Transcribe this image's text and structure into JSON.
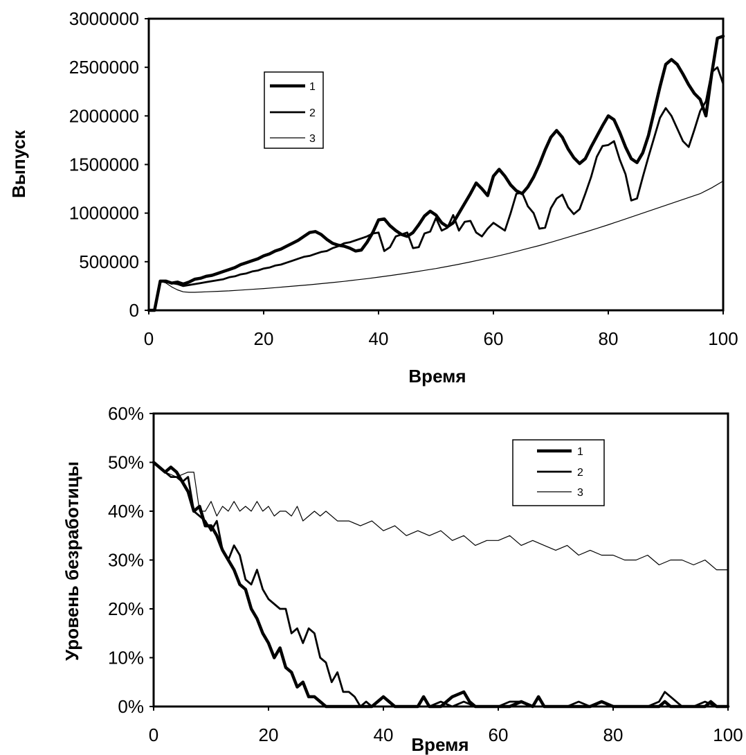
{
  "chart_data": [
    {
      "type": "line",
      "title": "",
      "xlabel": "Время",
      "ylabel": "Выпуск",
      "xlim": [
        0,
        100
      ],
      "ylim": [
        0,
        3000000
      ],
      "xticks": [
        0,
        20,
        40,
        60,
        80,
        100
      ],
      "xtick_labels": [
        "0",
        "20",
        "40",
        "60",
        "80",
        "100"
      ],
      "yticks": [
        0,
        500000,
        1000000,
        1500000,
        2000000,
        2500000,
        3000000
      ],
      "ytick_labels": [
        "0",
        "500000",
        "1000000",
        "1500000",
        "2000000",
        "2500000",
        "3000000"
      ],
      "grid": false,
      "legend_position": "upper-left",
      "series": [
        {
          "name": "1",
          "line_width": 4.5,
          "x": [
            0,
            1,
            2,
            3,
            4,
            5,
            6,
            7,
            8,
            9,
            10,
            11,
            12,
            13,
            14,
            15,
            16,
            17,
            18,
            19,
            20,
            21,
            22,
            23,
            24,
            25,
            26,
            27,
            28,
            29,
            30,
            31,
            32,
            33,
            34,
            35,
            36,
            37,
            38,
            39,
            40,
            41,
            42,
            43,
            44,
            45,
            46,
            47,
            48,
            49,
            50,
            51,
            52,
            53,
            54,
            55,
            56,
            57,
            58,
            59,
            60,
            61,
            62,
            63,
            64,
            65,
            66,
            67,
            68,
            69,
            70,
            71,
            72,
            73,
            74,
            75,
            76,
            77,
            78,
            79,
            80,
            81,
            82,
            83,
            84,
            85,
            86,
            87,
            88,
            89,
            90,
            91,
            92,
            93,
            94,
            95,
            96,
            97,
            98,
            99,
            100
          ],
          "y": [
            0,
            0,
            300000,
            300000,
            280000,
            290000,
            270000,
            290000,
            320000,
            330000,
            350000,
            360000,
            380000,
            400000,
            420000,
            440000,
            470000,
            490000,
            510000,
            530000,
            560000,
            580000,
            610000,
            630000,
            660000,
            690000,
            720000,
            760000,
            800000,
            810000,
            780000,
            730000,
            690000,
            670000,
            660000,
            640000,
            610000,
            620000,
            700000,
            800000,
            930000,
            940000,
            870000,
            820000,
            780000,
            760000,
            800000,
            880000,
            970000,
            1020000,
            980000,
            900000,
            860000,
            900000,
            1000000,
            1100000,
            1200000,
            1310000,
            1250000,
            1180000,
            1380000,
            1450000,
            1380000,
            1290000,
            1230000,
            1200000,
            1270000,
            1370000,
            1500000,
            1650000,
            1780000,
            1850000,
            1780000,
            1660000,
            1570000,
            1510000,
            1560000,
            1680000,
            1790000,
            1900000,
            2000000,
            1960000,
            1830000,
            1680000,
            1560000,
            1520000,
            1620000,
            1800000,
            2050000,
            2300000,
            2530000,
            2580000,
            2530000,
            2430000,
            2320000,
            2230000,
            2170000,
            2000000,
            2430000,
            2800000,
            2820000
          ]
        },
        {
          "name": "2",
          "line_width": 2.8,
          "x": [
            0,
            1,
            2,
            3,
            4,
            5,
            6,
            7,
            8,
            9,
            10,
            11,
            12,
            13,
            14,
            15,
            16,
            17,
            18,
            19,
            20,
            21,
            22,
            23,
            24,
            25,
            26,
            27,
            28,
            29,
            30,
            31,
            32,
            33,
            34,
            35,
            36,
            37,
            38,
            39,
            40,
            41,
            42,
            43,
            44,
            45,
            46,
            47,
            48,
            49,
            50,
            51,
            52,
            53,
            54,
            55,
            56,
            57,
            58,
            59,
            60,
            61,
            62,
            63,
            64,
            65,
            66,
            67,
            68,
            69,
            70,
            71,
            72,
            73,
            74,
            75,
            76,
            77,
            78,
            79,
            80,
            81,
            82,
            83,
            84,
            85,
            86,
            87,
            88,
            89,
            90,
            91,
            92,
            93,
            94,
            95,
            96,
            97,
            98,
            99,
            100
          ],
          "y": [
            0,
            0,
            300000,
            290000,
            280000,
            270000,
            250000,
            260000,
            270000,
            280000,
            290000,
            300000,
            310000,
            320000,
            340000,
            350000,
            370000,
            380000,
            400000,
            410000,
            430000,
            440000,
            460000,
            470000,
            490000,
            510000,
            530000,
            550000,
            560000,
            580000,
            600000,
            610000,
            640000,
            660000,
            690000,
            700000,
            720000,
            740000,
            760000,
            790000,
            800000,
            610000,
            650000,
            760000,
            780000,
            800000,
            640000,
            650000,
            790000,
            810000,
            950000,
            820000,
            850000,
            980000,
            820000,
            910000,
            920000,
            800000,
            760000,
            840000,
            900000,
            860000,
            820000,
            1000000,
            1200000,
            1210000,
            1070000,
            1000000,
            840000,
            850000,
            1050000,
            1150000,
            1190000,
            1060000,
            990000,
            1040000,
            1200000,
            1370000,
            1580000,
            1690000,
            1700000,
            1740000,
            1550000,
            1400000,
            1130000,
            1150000,
            1370000,
            1580000,
            1780000,
            1980000,
            2080000,
            2000000,
            1870000,
            1740000,
            1680000,
            1860000,
            2050000,
            2150000,
            2450000,
            2500000,
            2330000
          ]
        },
        {
          "name": "3",
          "line_width": 1.2,
          "x": [
            0,
            1,
            2,
            3,
            4,
            5,
            6,
            7,
            8,
            10,
            12,
            14,
            16,
            18,
            20,
            22,
            24,
            26,
            28,
            30,
            32,
            34,
            36,
            38,
            40,
            42,
            44,
            46,
            48,
            50,
            52,
            54,
            56,
            58,
            60,
            62,
            64,
            66,
            68,
            70,
            72,
            74,
            76,
            78,
            80,
            82,
            84,
            86,
            88,
            90,
            92,
            94,
            96,
            98,
            100
          ],
          "y": [
            0,
            0,
            300000,
            280000,
            240000,
            210000,
            190000,
            185000,
            185000,
            190000,
            195000,
            200000,
            208000,
            216000,
            224000,
            233000,
            243000,
            253000,
            263000,
            274000,
            286000,
            298000,
            312000,
            326000,
            341000,
            357000,
            374000,
            392000,
            411000,
            430000,
            452000,
            474000,
            498000,
            523000,
            548000,
            576000,
            605000,
            636000,
            666000,
            700000,
            735000,
            770000,
            805000,
            842000,
            880000,
            920000,
            960000,
            1000000,
            1040000,
            1080000,
            1120000,
            1160000,
            1200000,
            1260000,
            1330000
          ]
        }
      ]
    },
    {
      "type": "line",
      "title": "",
      "xlabel": "Время",
      "ylabel": "Уровень безработицы",
      "xlim": [
        0,
        100
      ],
      "ylim": [
        0,
        60
      ],
      "unit": "%",
      "xticks": [
        0,
        20,
        40,
        60,
        80,
        100
      ],
      "xtick_labels": [
        "0",
        "20",
        "40",
        "60",
        "80",
        "100"
      ],
      "yticks": [
        0,
        10,
        20,
        30,
        40,
        50,
        60
      ],
      "ytick_labels": [
        "0%",
        "10%",
        "20%",
        "30%",
        "40%",
        "50%",
        "60%"
      ],
      "grid": false,
      "legend_position": "upper-right",
      "series": [
        {
          "name": "1",
          "line_width": 4.5,
          "x": [
            0,
            1,
            2,
            3,
            4,
            5,
            6,
            7,
            8,
            9,
            10,
            11,
            12,
            13,
            14,
            15,
            16,
            17,
            18,
            19,
            20,
            21,
            22,
            23,
            24,
            25,
            26,
            27,
            28,
            29,
            30,
            32,
            34,
            36,
            38,
            39,
            40,
            41,
            42,
            43,
            44,
            46,
            47,
            48,
            50,
            52,
            54,
            55,
            56,
            58,
            60,
            62,
            64,
            66,
            67,
            68,
            70,
            72,
            74,
            76,
            78,
            80,
            82,
            84,
            86,
            88,
            89,
            90,
            92,
            94,
            96,
            97,
            98,
            99,
            100
          ],
          "y": [
            50,
            49,
            48,
            49,
            48,
            46,
            44,
            40,
            41,
            37,
            37,
            35,
            32,
            30,
            28,
            25,
            24,
            20,
            18,
            15,
            13,
            10,
            12,
            8,
            7,
            4,
            5,
            2,
            2,
            1,
            0,
            0,
            0,
            0,
            0,
            1,
            2,
            1,
            0,
            0,
            0,
            0,
            2,
            0,
            0,
            2,
            3,
            1,
            0,
            0,
            0,
            0,
            1,
            0,
            2,
            0,
            0,
            0,
            0,
            0,
            1,
            0,
            0,
            0,
            0,
            0,
            1,
            0,
            0,
            0,
            0,
            1,
            0,
            0,
            0
          ]
        },
        {
          "name": "2",
          "line_width": 2.8,
          "x": [
            0,
            1,
            2,
            3,
            4,
            5,
            6,
            7,
            8,
            9,
            10,
            11,
            12,
            13,
            14,
            15,
            16,
            17,
            18,
            19,
            20,
            21,
            22,
            23,
            24,
            25,
            26,
            27,
            28,
            29,
            30,
            31,
            32,
            33,
            34,
            35,
            36,
            37,
            38,
            40,
            42,
            44,
            46,
            48,
            50,
            52,
            54,
            56,
            58,
            60,
            62,
            64,
            66,
            68,
            70,
            72,
            74,
            76,
            78,
            80,
            82,
            84,
            86,
            88,
            89,
            90,
            92,
            94,
            96,
            98,
            100
          ],
          "y": [
            50,
            49,
            48,
            47,
            47,
            46,
            47,
            40,
            39,
            38,
            36,
            38,
            32,
            30,
            33,
            31,
            26,
            25,
            28,
            24,
            22,
            21,
            20,
            20,
            15,
            16,
            13,
            16,
            15,
            10,
            9,
            5,
            7,
            3,
            3,
            2,
            0,
            1,
            0,
            0,
            0,
            0,
            0,
            0,
            1,
            0,
            1,
            0,
            0,
            0,
            1,
            1,
            0,
            0,
            0,
            0,
            1,
            0,
            0,
            0,
            0,
            0,
            0,
            1,
            3,
            2,
            0,
            0,
            1,
            0,
            0
          ]
        },
        {
          "name": "3",
          "line_width": 1.2,
          "x": [
            0,
            2,
            4,
            6,
            7,
            8,
            9,
            10,
            11,
            12,
            13,
            14,
            15,
            16,
            17,
            18,
            19,
            20,
            21,
            22,
            23,
            24,
            25,
            26,
            27,
            28,
            29,
            30,
            32,
            34,
            36,
            38,
            40,
            42,
            44,
            46,
            48,
            50,
            52,
            54,
            56,
            58,
            60,
            62,
            64,
            66,
            68,
            70,
            72,
            74,
            76,
            78,
            80,
            82,
            84,
            86,
            88,
            90,
            92,
            94,
            96,
            98,
            100
          ],
          "y": [
            50,
            48,
            47,
            48,
            48,
            40,
            40,
            42,
            39,
            41,
            40,
            42,
            40,
            41,
            40,
            42,
            40,
            41,
            39,
            40,
            40,
            39,
            41,
            38,
            39,
            40,
            39,
            40,
            38,
            38,
            37,
            38,
            36,
            37,
            35,
            36,
            35,
            36,
            34,
            35,
            33,
            34,
            34,
            35,
            33,
            34,
            33,
            32,
            33,
            31,
            32,
            31,
            31,
            30,
            30,
            31,
            29,
            30,
            30,
            29,
            30,
            28,
            28
          ]
        }
      ]
    }
  ]
}
